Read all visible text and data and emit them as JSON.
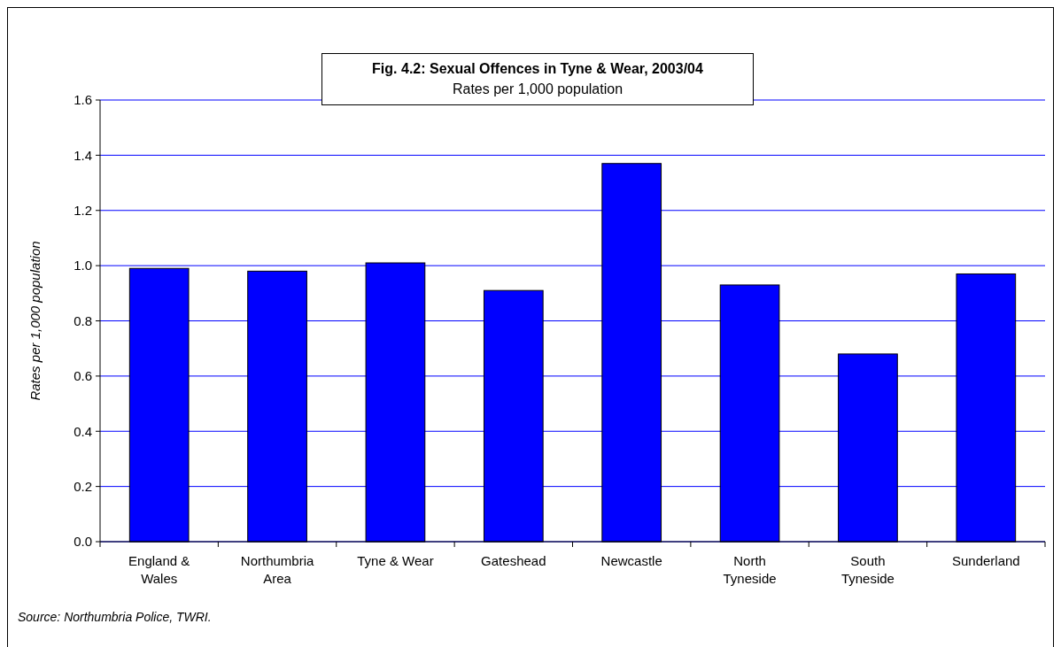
{
  "chart_data": {
    "type": "bar",
    "title": "Fig. 4.2: Sexual Offences in Tyne & Wear, 2003/04",
    "subtitle": "Rates per 1,000 population",
    "ylabel": "Rates per 1,000 population",
    "categories": [
      "England & Wales",
      "Northumbria Area",
      "Tyne & Wear",
      "Gateshead",
      "Newcastle",
      "North Tyneside",
      "South Tyneside",
      "Sunderland"
    ],
    "values": [
      0.99,
      0.98,
      1.01,
      0.91,
      1.37,
      0.93,
      0.68,
      0.97
    ],
    "color": "#0000ff",
    "ylim": [
      0,
      1.6
    ],
    "yticks": [
      {
        "value": 0,
        "label": "0.0"
      },
      {
        "value": 0.2,
        "label": "0.2"
      },
      {
        "value": 0.4,
        "label": "0.4"
      },
      {
        "value": 0.6,
        "label": "0.6"
      },
      {
        "value": 0.8,
        "label": "0.8"
      },
      {
        "value": 1,
        "label": "1.0"
      },
      {
        "value": 1.2,
        "label": "1.2"
      },
      {
        "value": 1.4,
        "label": "1.4"
      },
      {
        "value": 1.6,
        "label": "1.6"
      }
    ],
    "grid": "y",
    "annotations": [
      "Source: Northumbria Police, TWRI."
    ]
  }
}
